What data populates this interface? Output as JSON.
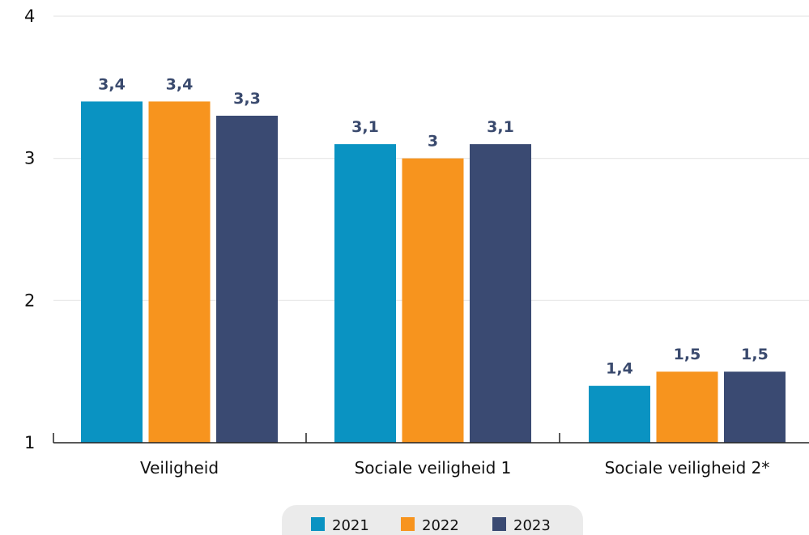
{
  "chart_data": {
    "type": "bar",
    "categories": [
      "Veiligheid",
      "Sociale veiligheid 1",
      "Sociale veiligheid 2*"
    ],
    "series": [
      {
        "name": "2021",
        "values": [
          3.4,
          3.1,
          1.4
        ],
        "labels": [
          "3,4",
          "3,1",
          "1,4"
        ],
        "color": "#0a93c2"
      },
      {
        "name": "2022",
        "values": [
          3.4,
          3.0,
          1.5
        ],
        "labels": [
          "3,4",
          "3",
          "1,5"
        ],
        "color": "#f7941e"
      },
      {
        "name": "2023",
        "values": [
          3.3,
          3.1,
          1.5
        ],
        "labels": [
          "3,3",
          "3,1",
          "1,5"
        ],
        "color": "#3a4a72"
      }
    ],
    "y_ticks": [
      {
        "value": 1,
        "label": "1"
      },
      {
        "value": 2,
        "label": "2"
      },
      {
        "value": 3,
        "label": "3"
      },
      {
        "value": 4,
        "label": "4"
      }
    ],
    "ylim": [
      1,
      4
    ],
    "grid": true,
    "legend_position": "bottom-center",
    "legend_background": "#ebebeb",
    "gridline_color": "#e6e6e6",
    "axis_color": "#222222"
  }
}
